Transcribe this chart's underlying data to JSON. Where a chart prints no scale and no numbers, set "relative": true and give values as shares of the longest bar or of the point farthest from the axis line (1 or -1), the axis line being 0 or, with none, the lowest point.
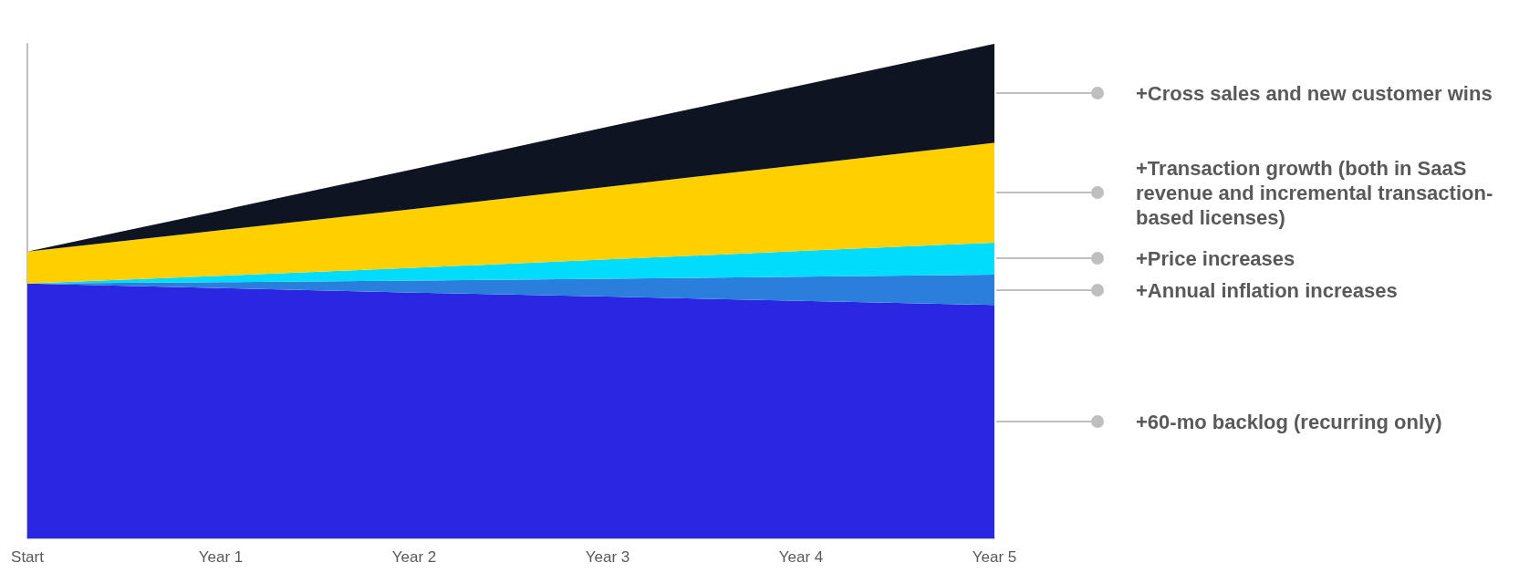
{
  "chart_data": {
    "type": "area",
    "stacked": true,
    "relative": true,
    "legend": "right",
    "categories": [
      "Start",
      "Year 1",
      "Year 2",
      "Year 3",
      "Year 4",
      "Year 5"
    ],
    "series": [
      {
        "name": "+60-mo backlog (recurring only)",
        "color": "#2a27e3",
        "values": [
          0.515,
          0.506,
          0.497,
          0.489,
          0.48,
          0.472
        ]
      },
      {
        "name": "+Annual inflation increases",
        "color": "#2a7fdc",
        "values": [
          0,
          0.012,
          0.024,
          0.036,
          0.049,
          0.061
        ]
      },
      {
        "name": "+Price increases",
        "color": "#00dcfc",
        "values": [
          0,
          0.013,
          0.026,
          0.039,
          0.052,
          0.065
        ]
      },
      {
        "name": "+Transaction growth (both in SaaS revenue and incremental transaction-based licenses)",
        "color": "#ffd000",
        "values": [
          0.065,
          0.092,
          0.119,
          0.147,
          0.174,
          0.202
        ]
      },
      {
        "name": "+Cross sales and new customer wins",
        "color": "#0f1423",
        "values": [
          0,
          0.04,
          0.081,
          0.121,
          0.161,
          0.2
        ]
      }
    ]
  }
}
